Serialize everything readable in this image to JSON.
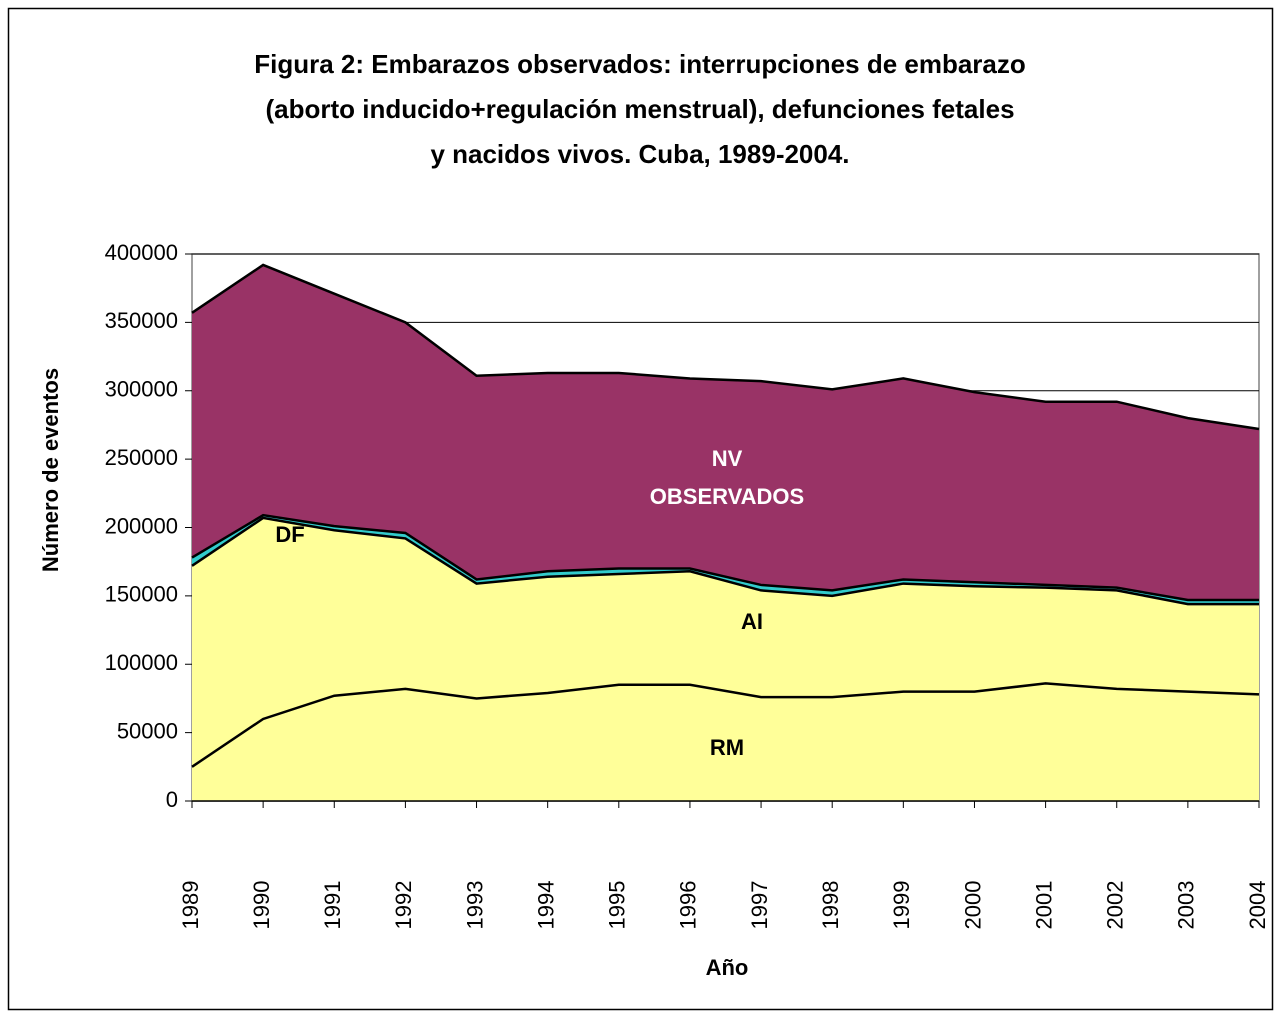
{
  "chart_data": {
    "type": "stacked-area",
    "title": [
      "Figura 2: Embarazos observados:  interrupciones de embarazo",
      "(aborto inducido+regulación menstrual),  defunciones fetales",
      "y nacidos vivos.  Cuba, 1989-2004."
    ],
    "x_label": "Año",
    "y_label": "Número de eventos",
    "categories": [
      "1989",
      "1990",
      "1991",
      "1992",
      "1993",
      "1994",
      "1995",
      "1996",
      "1997",
      "1998",
      "1999",
      "2000",
      "2001",
      "2002",
      "2003",
      "2004"
    ],
    "series": [
      {
        "name": "RM",
        "color": "#ffff99",
        "values": [
          25000,
          60000,
          77000,
          82000,
          75000,
          79000,
          85000,
          85000,
          76000,
          76000,
          80000,
          80000,
          86000,
          82000,
          80000,
          78000
        ]
      },
      {
        "name": "AI",
        "color": "#ffff99",
        "values": [
          147000,
          147000,
          121000,
          110000,
          84000,
          85000,
          81000,
          83000,
          78000,
          74000,
          79000,
          77000,
          70000,
          72000,
          64000,
          66000
        ]
      },
      {
        "name": "DF",
        "color": "#33cccc",
        "values": [
          6000,
          2000,
          3000,
          4000,
          3000,
          4000,
          4000,
          2000,
          4000,
          4000,
          3000,
          3000,
          2000,
          2000,
          3000,
          3000
        ]
      },
      {
        "name": "NV OBSERVADOS",
        "color": "#993366",
        "values": [
          179000,
          183000,
          170000,
          154000,
          149000,
          145000,
          143000,
          139000,
          149000,
          147000,
          147000,
          139000,
          134000,
          136000,
          133000,
          125000
        ]
      }
    ],
    "ylim": [
      0,
      400000
    ],
    "yticks": [
      0,
      50000,
      100000,
      150000,
      200000,
      250000,
      300000,
      350000,
      400000
    ],
    "grid": true
  }
}
